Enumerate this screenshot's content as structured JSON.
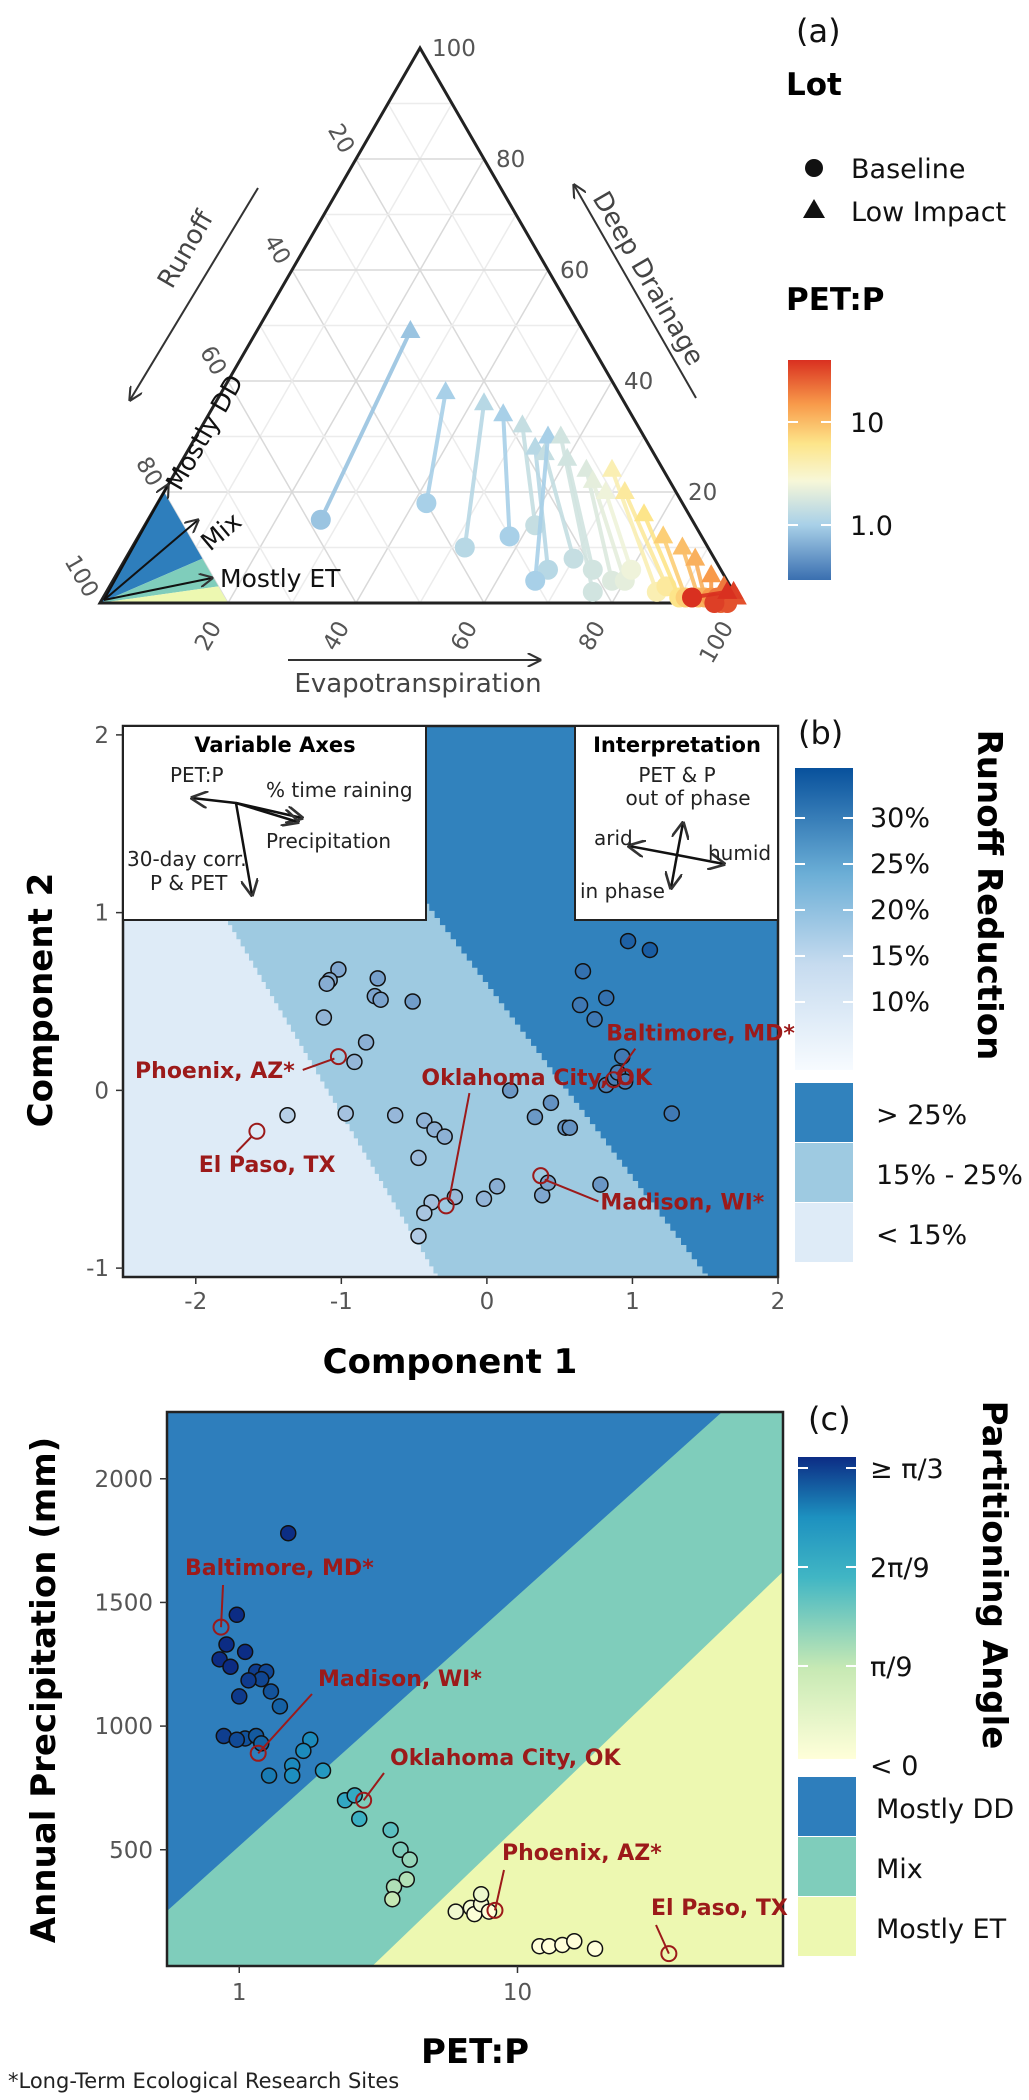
{
  "footnote": "*Long-Term Ecological Research Sites",
  "colors": {
    "mostly_dd": "#2e7ebc",
    "mix": "#7fcdbb",
    "mostly_et": "#edf8b1",
    "runoff_high": "#3182bd",
    "runoff_mid": "#9ecae1",
    "runoff_low": "#deebf7",
    "site_label": "#9c1a1a"
  },
  "chart_data": [
    {
      "id": "a",
      "type": "scatter",
      "subtype": "ternary",
      "panel_label": "(a)",
      "axes": {
        "a": {
          "label": "Runoff",
          "ticks": [
            "20",
            "40",
            "60",
            "80",
            "100"
          ]
        },
        "b": {
          "label": "Deep Drainage",
          "ticks": [
            "20",
            "40",
            "60",
            "80",
            "100"
          ]
        },
        "c": {
          "label": "Evapotranspiration",
          "ticks": [
            "20",
            "40",
            "60",
            "80",
            "100"
          ]
        }
      },
      "regions": [
        {
          "name": "Mostly DD",
          "color": "#2e7ebc"
        },
        {
          "name": "Mix",
          "color": "#7fcdbb"
        },
        {
          "name": "Mostly ET",
          "color": "#edf8b1"
        }
      ],
      "legend_lot": {
        "title": "Lot",
        "entries": [
          "Baseline",
          "Low Impact"
        ]
      },
      "legend_color": {
        "title": "PET:P",
        "ticks": [
          "10",
          "1.0"
        ],
        "scale": "log"
      },
      "arrows": [
        {
          "from": [
            58,
            15,
            27
          ],
          "to": [
            27,
            49,
            24
          ],
          "petp": 0.6
        },
        {
          "from": [
            40,
            18,
            42
          ],
          "to": [
            27,
            38,
            35
          ],
          "petp": 0.7
        },
        {
          "from": [
            38,
            10,
            52
          ],
          "to": [
            22,
            36,
            42
          ],
          "petp": 0.8
        },
        {
          "from": [
            30,
            12,
            58
          ],
          "to": [
            20,
            34,
            46
          ],
          "petp": 0.7
        },
        {
          "from": [
            25,
            14,
            61
          ],
          "to": [
            18,
            32,
            50
          ],
          "petp": 0.9
        },
        {
          "from": [
            27,
            6,
            67
          ],
          "to": [
            18,
            28,
            54
          ],
          "petp": 0.8
        },
        {
          "from": [
            22,
            8,
            70
          ],
          "to": [
            17,
            27,
            56
          ],
          "petp": 0.9
        },
        {
          "from": [
            20,
            6,
            74
          ],
          "to": [
            14,
            26,
            60
          ],
          "petp": 1.0
        },
        {
          "from": [
            18,
            4,
            78
          ],
          "to": [
            12,
            24,
            64
          ],
          "petp": 1.1
        },
        {
          "from": [
            16,
            4,
            80
          ],
          "to": [
            12,
            22,
            66
          ],
          "petp": 1.2
        },
        {
          "from": [
            14,
            6,
            80
          ],
          "to": [
            11,
            20,
            69
          ],
          "petp": 1.3
        },
        {
          "from": [
            30,
            4,
            66
          ],
          "to": [
            15,
            30,
            55
          ],
          "petp": 0.7
        },
        {
          "from": [
            22,
            2,
            76
          ],
          "to": [
            13,
            30,
            57
          ],
          "petp": 1.0
        },
        {
          "from": [
            12,
            2,
            86
          ],
          "to": [
            8,
            24,
            68
          ],
          "petp": 2.0
        },
        {
          "from": [
            10,
            3,
            87
          ],
          "to": [
            8,
            20,
            72
          ],
          "petp": 2.5
        },
        {
          "from": [
            9,
            1,
            90
          ],
          "to": [
            7,
            16,
            77
          ],
          "petp": 3.0
        },
        {
          "from": [
            8,
            1,
            91
          ],
          "to": [
            6,
            12,
            82
          ],
          "petp": 4.0
        },
        {
          "from": [
            6,
            1,
            93
          ],
          "to": [
            4,
            10,
            86
          ],
          "petp": 5.0
        },
        {
          "from": [
            5,
            1,
            94
          ],
          "to": [
            3,
            8,
            89
          ],
          "petp": 6.0
        },
        {
          "from": [
            4,
            1,
            95
          ],
          "to": [
            2,
            5,
            93
          ],
          "petp": 8.0
        },
        {
          "from": [
            3,
            1,
            96
          ],
          "to": [
            1,
            3,
            96
          ],
          "petp": 12.0
        },
        {
          "from": [
            3,
            0,
            97
          ],
          "to": [
            1,
            1,
            98
          ],
          "petp": 15.0
        },
        {
          "from": [
            2,
            0,
            98
          ],
          "to": [
            0,
            1,
            99
          ],
          "petp": 20.0
        },
        {
          "from": [
            4,
            0,
            96
          ],
          "to": [
            0,
            2,
            98
          ],
          "petp": 25.0
        },
        {
          "from": [
            7,
            1,
            92
          ],
          "to": [
            1,
            2,
            97
          ],
          "petp": 30.0
        }
      ]
    },
    {
      "id": "b",
      "type": "scatter",
      "panel_label": "(b)",
      "xlabel": "Component 1",
      "ylabel": "Component 2",
      "xlim": [
        -2.5,
        2.0
      ],
      "ylim": [
        -1.05,
        2.05
      ],
      "xticks": [
        "-2",
        "-1",
        "0",
        "1",
        "2"
      ],
      "yticks": [
        "-1",
        "0",
        "1",
        "2"
      ],
      "legend": {
        "title": "Runoff Reduction",
        "ticks": [
          "30%",
          "25%",
          "20%",
          "15%",
          "10%"
        ],
        "classes": [
          "> 25%",
          "15% - 25%",
          "< 15%"
        ]
      },
      "inset_axes": {
        "title": "Variable Axes",
        "labels": [
          "PET:P",
          "% time raining",
          "Precipitation",
          "30-day corr.",
          "P & PET"
        ]
      },
      "inset_interp": {
        "title": "Interpretation",
        "labels": [
          "PET & P",
          "out of phase",
          "arid",
          "humid",
          "in phase"
        ]
      },
      "points": [
        [
          -1.02,
          0.68
        ],
        [
          -1.08,
          0.62
        ],
        [
          -1.1,
          0.6
        ],
        [
          -1.12,
          0.41
        ],
        [
          -0.75,
          0.63
        ],
        [
          -0.77,
          0.53
        ],
        [
          -0.73,
          0.51
        ],
        [
          -0.51,
          0.5
        ],
        [
          -0.83,
          0.27
        ],
        [
          -0.91,
          0.16
        ],
        [
          -0.97,
          -0.13
        ],
        [
          -1.37,
          -0.14
        ],
        [
          -0.63,
          -0.14
        ],
        [
          -0.43,
          -0.17
        ],
        [
          -0.36,
          -0.22
        ],
        [
          -0.29,
          -0.26
        ],
        [
          -0.47,
          -0.38
        ],
        [
          -0.22,
          -0.6
        ],
        [
          -0.02,
          -0.61
        ],
        [
          0.07,
          -0.54
        ],
        [
          -0.38,
          -0.63
        ],
        [
          -0.43,
          -0.69
        ],
        [
          -0.47,
          -0.82
        ],
        [
          0.16,
          0.0
        ],
        [
          0.33,
          -0.15
        ],
        [
          0.44,
          -0.07
        ],
        [
          0.54,
          -0.21
        ],
        [
          0.57,
          -0.21
        ],
        [
          0.38,
          -0.59
        ],
        [
          0.42,
          -0.52
        ],
        [
          0.78,
          -0.53
        ],
        [
          0.66,
          0.67
        ],
        [
          0.64,
          0.48
        ],
        [
          0.82,
          0.52
        ],
        [
          0.74,
          0.4
        ],
        [
          0.93,
          0.19
        ],
        [
          0.82,
          0.03
        ],
        [
          0.88,
          0.07
        ],
        [
          0.9,
          0.1
        ],
        [
          0.95,
          0.05
        ],
        [
          0.97,
          0.84
        ],
        [
          1.12,
          0.79
        ],
        [
          1.27,
          -0.13
        ]
      ],
      "sites": [
        {
          "name": "Phoenix, AZ*",
          "x": -1.02,
          "y": 0.19
        },
        {
          "name": "El Paso, TX",
          "x": -1.58,
          "y": -0.23
        },
        {
          "name": "Oklahoma City, OK",
          "x": -0.28,
          "y": -0.65
        },
        {
          "name": "Baltimore, MD*",
          "x": 0.87,
          "y": 0.06
        },
        {
          "name": "Madison, WI*",
          "x": 0.37,
          "y": -0.48
        }
      ]
    },
    {
      "id": "c",
      "type": "scatter",
      "panel_label": "(c)",
      "xlabel": "PET:P",
      "ylabel": "Annual Precipitation (mm)",
      "xscale": "log",
      "xlim": [
        0.55,
        90
      ],
      "ylim": [
        30,
        2270
      ],
      "xticks": [
        "1",
        "10"
      ],
      "yticks": [
        "500",
        "1000",
        "1500",
        "2000"
      ],
      "legend": {
        "title": "Partitioning Angle",
        "ticks": [
          "≥ π/3",
          "2π/9",
          "π/9",
          "< 0"
        ],
        "classes": [
          "Mostly DD",
          "Mix",
          "Mostly ET"
        ]
      },
      "points": [
        [
          1.5,
          1780
        ],
        [
          0.98,
          1450
        ],
        [
          0.9,
          1330
        ],
        [
          1.05,
          1300
        ],
        [
          0.85,
          1270
        ],
        [
          0.93,
          1240
        ],
        [
          1.15,
          1220
        ],
        [
          1.25,
          1220
        ],
        [
          1.2,
          1190
        ],
        [
          1.08,
          1185
        ],
        [
          1.3,
          1140
        ],
        [
          1.0,
          1120
        ],
        [
          1.4,
          1080
        ],
        [
          0.88,
          960
        ],
        [
          1.05,
          950
        ],
        [
          1.15,
          960
        ],
        [
          0.98,
          945
        ],
        [
          1.8,
          945
        ],
        [
          1.55,
          840
        ],
        [
          1.28,
          800
        ],
        [
          1.55,
          800
        ],
        [
          2.0,
          820
        ],
        [
          1.7,
          900
        ],
        [
          1.2,
          930
        ],
        [
          2.4,
          700
        ],
        [
          2.6,
          720
        ],
        [
          2.7,
          625
        ],
        [
          3.5,
          580
        ],
        [
          3.8,
          500
        ],
        [
          4.1,
          460
        ],
        [
          4.0,
          380
        ],
        [
          3.6,
          350
        ],
        [
          3.55,
          300
        ],
        [
          6.0,
          250
        ],
        [
          6.8,
          265
        ],
        [
          7.0,
          240
        ],
        [
          7.4,
          280
        ],
        [
          7.9,
          250
        ],
        [
          7.4,
          320
        ],
        [
          12.0,
          110
        ],
        [
          13.0,
          110
        ],
        [
          14.5,
          115
        ],
        [
          16.0,
          130
        ],
        [
          19.0,
          100
        ]
      ],
      "sites": [
        {
          "name": "Baltimore, MD*",
          "x": 0.86,
          "y": 1400
        },
        {
          "name": "Madison, WI*",
          "x": 1.17,
          "y": 890
        },
        {
          "name": "Oklahoma City, OK",
          "x": 2.8,
          "y": 700
        },
        {
          "name": "Phoenix, AZ*",
          "x": 8.3,
          "y": 255
        },
        {
          "name": "El Paso, TX",
          "x": 35.0,
          "y": 80
        }
      ]
    }
  ]
}
